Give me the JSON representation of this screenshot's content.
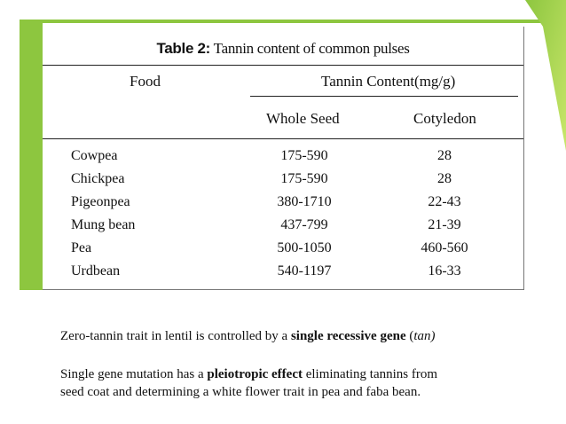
{
  "table": {
    "caption_label": "Table 2:",
    "caption_text": " Tannin content of common pulses",
    "headers": {
      "food": "Food",
      "tannin": "Tannin Content(mg/g)",
      "whole_seed": "Whole Seed",
      "cotyledon": "Cotyledon"
    },
    "rows": [
      {
        "food": "Cowpea",
        "whole": "175-590",
        "coty": "28"
      },
      {
        "food": "Chickpea",
        "whole": "175-590",
        "coty": "28"
      },
      {
        "food": "Pigeonpea",
        "whole": "380-1710",
        "coty": "22-43"
      },
      {
        "food": "Mung bean",
        "whole": "437-799",
        "coty": "21-39"
      },
      {
        "food": "Pea",
        "whole": "500-1050",
        "coty": "460-560"
      },
      {
        "food": "Urdbean",
        "whole": "540-1197",
        "coty": "16-33"
      }
    ]
  },
  "notes": {
    "line1_a": "Zero-tannin trait in lentil is controlled by a ",
    "line1_b": "single recessive gene",
    "line1_c": " (",
    "line1_d": "tan)",
    "line2_a": "Single gene mutation has a ",
    "line2_b": "pleiotropic effect",
    "line2_c": " eliminating tannins from",
    "line3": "seed coat and determining a white flower trait in pea and faba bean."
  },
  "colors": {
    "accent": "#8dc63f"
  }
}
